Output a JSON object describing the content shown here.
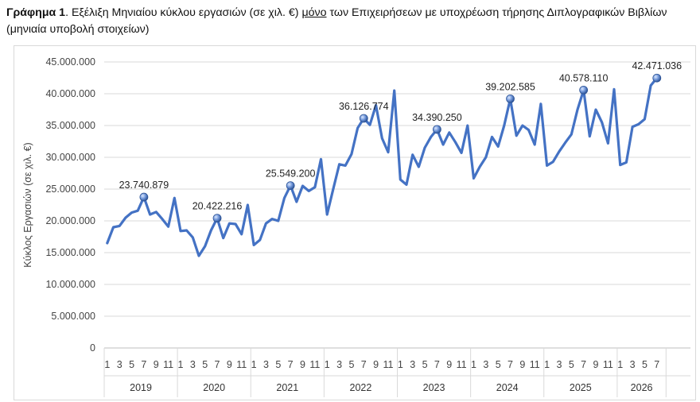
{
  "caption": {
    "prefix": "Γράφημα 1",
    "part1": ". Εξέλιξη Μηνιαίου κύκλου εργασιών (σε χιλ. €) ",
    "underlined": "μόνο",
    "part2": " των Επιχειρήσεων με υποχρέωση τήρησης Διπλογραφικών Βιβλίων (μηνιαία υποβολή στοιχείων)"
  },
  "chart_data": {
    "type": "line",
    "ylabel": "Κύκλος Εργασιών (σε χιλ. €)",
    "ylim": [
      0,
      45000000
    ],
    "ytick_labels": [
      "0",
      "5.000.000",
      "10.000.000",
      "15.000.000",
      "20.000.000",
      "25.000.000",
      "30.000.000",
      "35.000.000",
      "40.000.000",
      "45.000.000"
    ],
    "grid": "horizontal",
    "line_color": "#4472c4",
    "x_month_labels": [
      "1",
      "3",
      "5",
      "7",
      "9",
      "11"
    ],
    "x_month_labels_2026": [
      "1",
      "3",
      "5",
      "7"
    ],
    "years": [
      "2019",
      "2020",
      "2021",
      "2022",
      "2023",
      "2024",
      "2025",
      "2026"
    ],
    "series": [
      {
        "values": [
          16500000,
          19000000,
          19200000,
          20500000,
          21300000,
          21600000,
          23740879,
          21000000,
          21400000,
          20300000,
          19100000,
          23600000,
          18400000,
          18500000,
          17400000,
          14500000,
          16000000,
          18500000,
          20422216,
          17300000,
          19600000,
          19500000,
          17900000,
          22500000,
          16200000,
          17000000,
          19600000,
          20300000,
          20000000,
          23600000,
          25549200,
          23000000,
          25500000,
          24700000,
          25300000,
          29700000,
          21000000,
          25000000,
          28900000,
          28700000,
          30500000,
          34600000,
          36126774,
          35100000,
          38200000,
          33000000,
          30800000,
          40500000,
          26500000,
          25700000,
          30400000,
          28500000,
          31500000,
          33200000,
          34390250,
          32000000,
          33900000,
          32400000,
          30700000,
          35000000,
          26700000,
          28500000,
          30000000,
          33200000,
          31700000,
          35000000,
          39202585,
          33400000,
          35000000,
          34300000,
          32000000,
          38400000,
          28700000,
          29300000,
          30900000,
          32300000,
          33600000,
          37500000,
          40578110,
          33300000,
          37500000,
          35500000,
          32200000,
          40700000,
          28800000,
          29200000,
          34800000,
          35200000,
          36000000,
          41300000,
          42471036
        ]
      }
    ],
    "data_labels": [
      {
        "index": 6,
        "text": "23.740.879"
      },
      {
        "index": 18,
        "text": "20.422.216"
      },
      {
        "index": 30,
        "text": "25.549.200"
      },
      {
        "index": 42,
        "text": "36.126.774"
      },
      {
        "index": 54,
        "text": "34.390.250"
      },
      {
        "index": 66,
        "text": "39.202.585"
      },
      {
        "index": 78,
        "text": "40.578.110"
      },
      {
        "index": 90,
        "text": "42.471.036"
      }
    ]
  }
}
